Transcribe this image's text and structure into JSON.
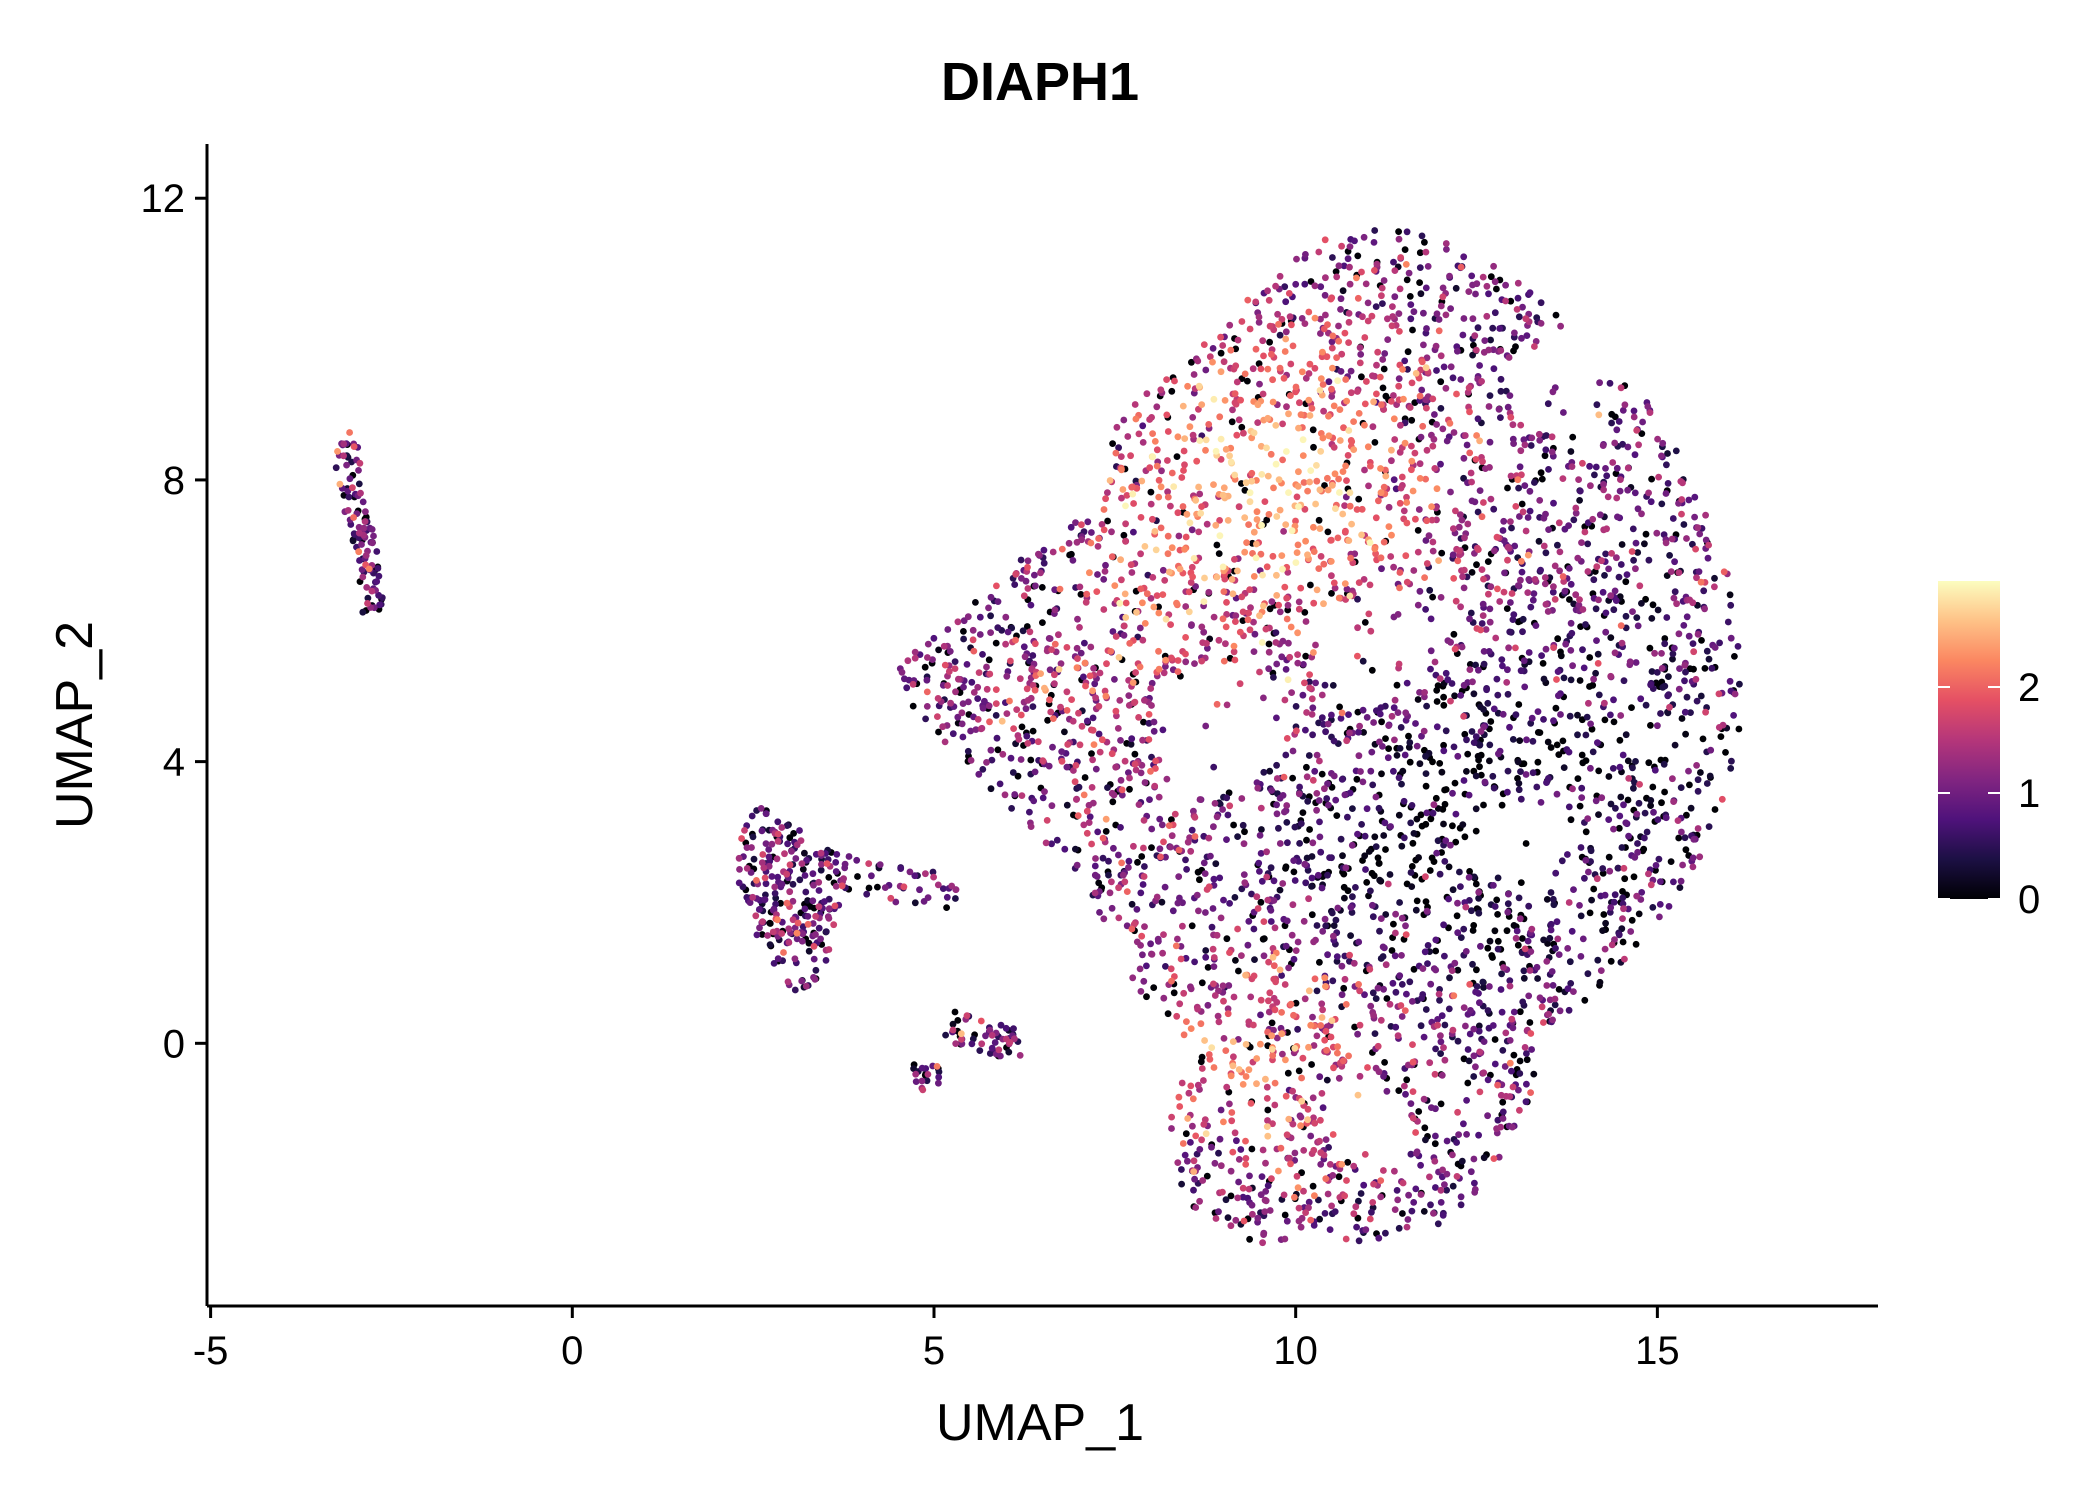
{
  "chart_data": {
    "type": "scatter",
    "title": "DIAPH1",
    "xlabel": "UMAP_1",
    "ylabel": "UMAP_2",
    "xlim": [
      -5.05,
      18.05
    ],
    "ylim": [
      -3.73,
      12.77
    ],
    "xticks": [
      -5,
      0,
      5,
      10,
      15
    ],
    "xtick_labels": [
      "-5",
      "0",
      "5",
      "10",
      "15"
    ],
    "yticks": [
      0,
      4,
      8,
      12
    ],
    "ytick_labels": [
      "0",
      "4",
      "8",
      "12"
    ],
    "grid": false,
    "colorbar": {
      "colormap": "magma",
      "range": [
        0,
        3
      ],
      "ticks": [
        0,
        1,
        2
      ],
      "tick_labels": [
        "0",
        "1",
        "2"
      ],
      "placement": "right",
      "colors": [
        "#000004",
        "#1c1044",
        "#4f127b",
        "#812581",
        "#b5367a",
        "#e55064",
        "#fb8761",
        "#fec287",
        "#fcfdbf"
      ]
    },
    "clusters": [
      {
        "name": "main",
        "count": 4200,
        "outline": [
          [
            10.5,
            11.5
          ],
          [
            11.5,
            11.6
          ],
          [
            12.5,
            11.2
          ],
          [
            13.5,
            10.5
          ],
          [
            14.5,
            9.6
          ],
          [
            15.3,
            8.5
          ],
          [
            15.9,
            7
          ],
          [
            16.2,
            5.5
          ],
          [
            16.1,
            4
          ],
          [
            15.6,
            2.6
          ],
          [
            14.8,
            1.4
          ],
          [
            14,
            0.6
          ],
          [
            13.4,
            0.2
          ],
          [
            13.3,
            -0.6
          ],
          [
            12.8,
            -1.8
          ],
          [
            12,
            -2.6
          ],
          [
            11,
            -2.8
          ],
          [
            9.8,
            -2.9
          ],
          [
            8.8,
            -2.7
          ],
          [
            8.2,
            -1.8
          ],
          [
            8.2,
            -1
          ],
          [
            8.6,
            -0.2
          ],
          [
            7.8,
            0.8
          ],
          [
            7.2,
            2
          ],
          [
            6.4,
            3
          ],
          [
            5.4,
            4
          ],
          [
            4.6,
            4.8
          ],
          [
            4.5,
            5.5
          ],
          [
            5.3,
            6
          ],
          [
            6.3,
            7
          ],
          [
            7.2,
            7.6
          ],
          [
            7.5,
            8.8
          ],
          [
            8.3,
            9.6
          ],
          [
            9,
            10.3
          ],
          [
            9.8,
            11
          ]
        ]
      },
      {
        "name": "island-upper-left",
        "count": 110,
        "outline": [
          [
            -3.3,
            8.6
          ],
          [
            -3,
            8.8
          ],
          [
            -2.9,
            8
          ],
          [
            -2.7,
            7
          ],
          [
            -2.6,
            6.1
          ],
          [
            -2.9,
            6.1
          ],
          [
            -3,
            7
          ],
          [
            -3.2,
            7.6
          ],
          [
            -3.3,
            8.2
          ]
        ]
      },
      {
        "name": "island-lower",
        "count": 260,
        "outline": [
          [
            2.3,
            3
          ],
          [
            2.6,
            3.4
          ],
          [
            3.2,
            3
          ],
          [
            3.8,
            2.6
          ],
          [
            3.6,
            1.5
          ],
          [
            3.4,
            0.8
          ],
          [
            3,
            0.7
          ],
          [
            2.6,
            1.4
          ],
          [
            2.3,
            2.2
          ]
        ]
      },
      {
        "name": "stream",
        "count": 45,
        "outline": [
          [
            3.6,
            2.7
          ],
          [
            5.3,
            2.4
          ],
          [
            5.4,
            1.9
          ],
          [
            4.5,
            2
          ],
          [
            3.6,
            2.2
          ]
        ]
      },
      {
        "name": "island-small-a",
        "count": 55,
        "outline": [
          [
            5.2,
            0.5
          ],
          [
            5.8,
            0.3
          ],
          [
            6.2,
            0.2
          ],
          [
            6.2,
            -0.2
          ],
          [
            5.6,
            -0.2
          ],
          [
            5.1,
            0.1
          ]
        ]
      },
      {
        "name": "island-small-b",
        "count": 20,
        "outline": [
          [
            4.7,
            -0.3
          ],
          [
            5.1,
            -0.3
          ],
          [
            5.1,
            -0.7
          ],
          [
            4.7,
            -0.7
          ]
        ]
      }
    ]
  }
}
